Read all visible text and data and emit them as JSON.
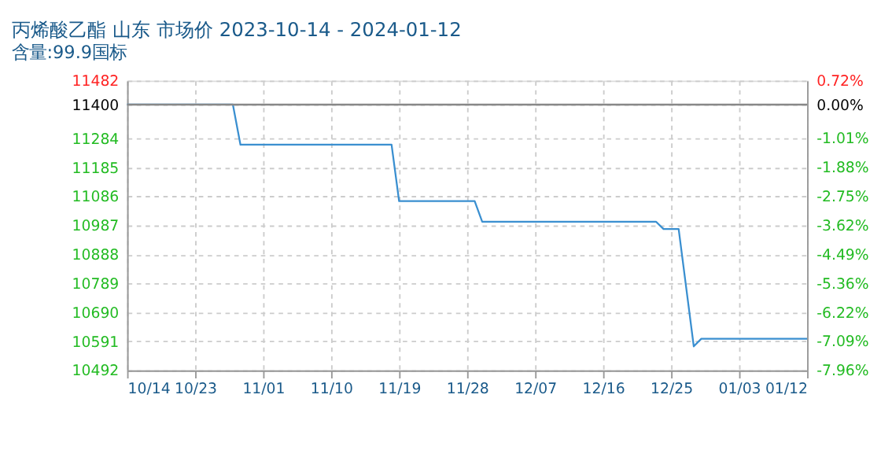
{
  "chart_data": {
    "type": "line",
    "title": "丙烯酸乙酯 山东 市场价 2023-10-14 - 2024-01-12",
    "subtitle": "含量:99.9国标",
    "x": [
      "2023-10-14",
      "2023-10-28",
      "2023-10-29",
      "2023-11-18",
      "2023-11-19",
      "2023-11-29",
      "2023-11-30",
      "2023-12-23",
      "2023-12-24",
      "2023-12-26",
      "2023-12-28",
      "2023-12-29",
      "2024-01-12"
    ],
    "series": [
      {
        "color": "#3a8fd0",
        "values": [
          11400,
          11400,
          11263,
          11263,
          11070,
          11070,
          11000,
          11000,
          10975,
          10975,
          10574,
          10600,
          10600
        ]
      }
    ],
    "xlim": [
      "2023-10-14",
      "2024-01-12"
    ],
    "xticks": [
      {
        "value": "2023-10-14",
        "label": "10/14"
      },
      {
        "value": "2023-10-23",
        "label": "10/23"
      },
      {
        "value": "2023-11-01",
        "label": "11/01"
      },
      {
        "value": "2023-11-10",
        "label": "11/10"
      },
      {
        "value": "2023-11-19",
        "label": "11/19"
      },
      {
        "value": "2023-11-28",
        "label": "11/28"
      },
      {
        "value": "2023-12-07",
        "label": "12/07"
      },
      {
        "value": "2023-12-16",
        "label": "12/16"
      },
      {
        "value": "2023-12-25",
        "label": "12/25"
      },
      {
        "value": "2024-01-03",
        "label": "01/03"
      },
      {
        "value": "2024-01-12",
        "label": "01/12"
      }
    ],
    "ylim": [
      10492,
      11482
    ],
    "yticks": [
      11482,
      11400,
      11284,
      11185,
      11086,
      10987,
      10888,
      10789,
      10690,
      10591,
      10492
    ],
    "y2lim": [
      -7.96,
      0.72
    ],
    "y2ticks": [
      {
        "value": 0.72,
        "label": "0.72%"
      },
      {
        "value": 0,
        "label": "0.00%"
      },
      {
        "value": -1.01,
        "label": "-1.01%"
      },
      {
        "value": -1.88,
        "label": "-1.88%"
      },
      {
        "value": -2.75,
        "label": "-2.75%"
      },
      {
        "value": -3.62,
        "label": "-3.62%"
      },
      {
        "value": -4.49,
        "label": "-4.49%"
      },
      {
        "value": -5.36,
        "label": "-5.36%"
      },
      {
        "value": -6.22,
        "label": "-6.22%"
      },
      {
        "value": -7.09,
        "label": "-7.09%"
      },
      {
        "value": -7.96,
        "label": "-7.96%"
      }
    ],
    "ref_lines": [
      {
        "axis": "y2",
        "value": 0,
        "color": "#888888"
      }
    ],
    "grid": true,
    "marker": "none",
    "line_style": "solid"
  }
}
